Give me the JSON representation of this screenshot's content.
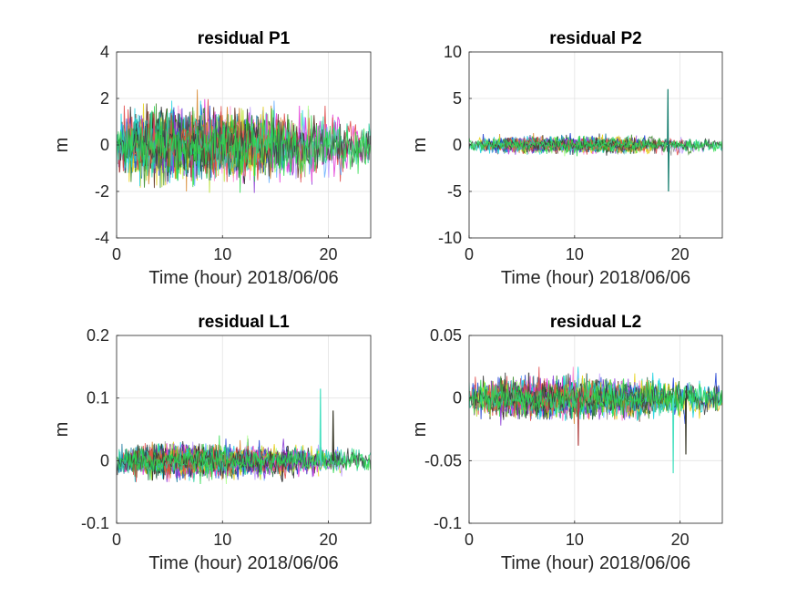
{
  "chart_data": [
    {
      "type": "line",
      "title": "residual P1",
      "xlabel": "Time (hour)  2018/06/06",
      "ylabel": "m",
      "xlim": [
        0,
        24
      ],
      "ylim": [
        -4,
        4
      ],
      "xticks": [
        0,
        10,
        20
      ],
      "xtick_labels": [
        "0",
        "10",
        "20"
      ],
      "yticks": [
        -4,
        -2,
        0,
        2,
        4
      ],
      "ytick_labels": [
        "-4",
        "-2",
        "0",
        "2",
        "4"
      ],
      "grid": true,
      "series_count": 30,
      "noise_amplitude": 0.75,
      "spikes": []
    },
    {
      "type": "line",
      "title": "residual P2",
      "xlabel": "Time (hour)  2018/06/06",
      "ylabel": "m",
      "xlim": [
        0,
        24
      ],
      "ylim": [
        -10,
        10
      ],
      "xticks": [
        0,
        10,
        20
      ],
      "xtick_labels": [
        "0",
        "10",
        "20"
      ],
      "yticks": [
        -10,
        -5,
        0,
        5,
        10
      ],
      "ytick_labels": [
        "-10",
        "-5",
        "0",
        "5",
        "10"
      ],
      "grid": true,
      "series_count": 30,
      "noise_amplitude": 0.45,
      "spikes": [
        {
          "x": 18.8,
          "values": [
            6,
            -5
          ],
          "color": "#0f7a6a"
        }
      ]
    },
    {
      "type": "line",
      "title": "residual L1",
      "xlabel": "Time (hour)  2018/06/06",
      "ylabel": "m",
      "xlim": [
        0,
        24
      ],
      "ylim": [
        -0.1,
        0.2
      ],
      "xticks": [
        0,
        10,
        20
      ],
      "xtick_labels": [
        "0",
        "10",
        "20"
      ],
      "yticks": [
        -0.1,
        0,
        0.1,
        0.2
      ],
      "ytick_labels": [
        "-0.1",
        "0",
        "0.1",
        "0.2"
      ],
      "grid": true,
      "series_count": 30,
      "noise_amplitude": 0.013,
      "spikes": [
        {
          "x": 19.2,
          "values": [
            0.115,
            -0.01
          ],
          "color": "#46e0c0"
        },
        {
          "x": 20.4,
          "values": [
            0.08,
            0.02
          ],
          "color": "#3a3a2a"
        }
      ]
    },
    {
      "type": "line",
      "title": "residual L2",
      "xlabel": "Time (hour)  2018/06/06",
      "ylabel": "m",
      "xlim": [
        0,
        24
      ],
      "ylim": [
        -0.1,
        0.05
      ],
      "xticks": [
        0,
        10,
        20
      ],
      "xtick_labels": [
        "0",
        "10",
        "20"
      ],
      "yticks": [
        -0.1,
        -0.05,
        0,
        0.05
      ],
      "ytick_labels": [
        "-0.1",
        "-0.05",
        "0",
        "0.05"
      ],
      "grid": true,
      "series_count": 30,
      "noise_amplitude": 0.008,
      "spikes": [
        {
          "x": 19.3,
          "values": [
            -0.06,
            0.005
          ],
          "color": "#46e0c0"
        },
        {
          "x": 20.5,
          "values": [
            -0.045,
            0.01
          ],
          "color": "#3a3a2a"
        },
        {
          "x": 10.3,
          "values": [
            -0.038,
            0.005
          ],
          "color": "#b04040"
        }
      ]
    }
  ],
  "palette": [
    "#1f3fd1",
    "#e6d21a",
    "#e23ad8",
    "#1bd1e0",
    "#2f2f2f",
    "#2ad94a",
    "#8a3ad6",
    "#d6852a",
    "#3a8a2a",
    "#e04a4a",
    "#6ab0ff",
    "#9a9a9a",
    "#b8e02a",
    "#2a6a4a",
    "#c0a0ff",
    "#5a2a1a",
    "#ff8ad0",
    "#1a7aa0",
    "#aaff88",
    "#2acfa0"
  ]
}
